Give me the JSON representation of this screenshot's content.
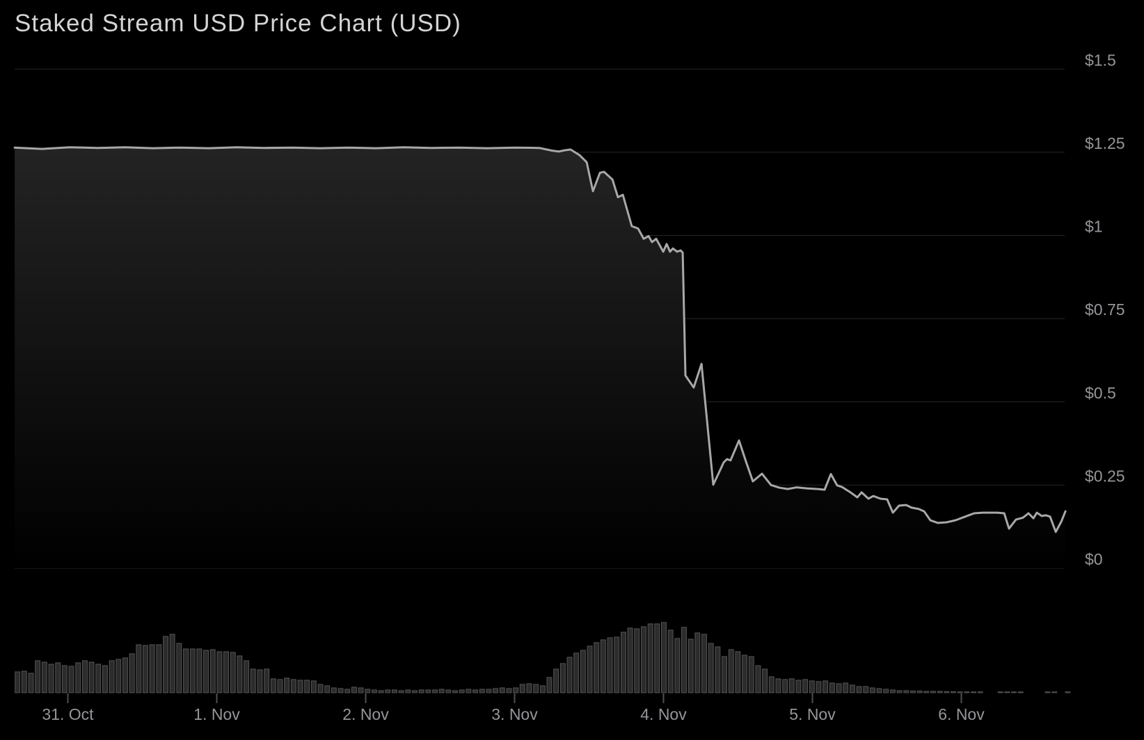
{
  "title": "Staked Stream USD Price Chart (USD)",
  "chart_data": {
    "type": "area",
    "title": "Staked Stream USD Price Chart (USD)",
    "x_axis": {
      "unit": "date (days since 31. Oct 00:00)",
      "tick_labels": [
        "31. Oct",
        "1. Nov",
        "2. Nov",
        "3. Nov",
        "4. Nov",
        "5. Nov",
        "6. Nov"
      ],
      "tick_days": [
        0,
        1,
        2,
        3,
        4,
        5,
        6
      ],
      "min_day": -0.357,
      "max_day": 6.699,
      "grid": false
    },
    "y_axis": {
      "side": "right",
      "unit": "USD",
      "tick_labels": [
        "$0",
        "$0.25",
        "$0.5",
        "$0.75",
        "$1",
        "$1.25",
        "$1.5"
      ],
      "tick_values": [
        0,
        0.25,
        0.5,
        0.75,
        1,
        1.25,
        1.5
      ],
      "min": 0,
      "max": 1.5,
      "grid": true
    },
    "series": [
      {
        "name": "Staked Stream USD price",
        "type": "line",
        "unit": "USD",
        "points": [
          [
            -0.357,
            1.264
          ],
          [
            -0.175,
            1.26
          ],
          [
            0.012,
            1.265
          ],
          [
            0.199,
            1.263
          ],
          [
            0.386,
            1.265
          ],
          [
            0.572,
            1.262
          ],
          [
            0.759,
            1.264
          ],
          [
            0.946,
            1.262
          ],
          [
            1.133,
            1.265
          ],
          [
            1.32,
            1.263
          ],
          [
            1.507,
            1.264
          ],
          [
            1.694,
            1.262
          ],
          [
            1.881,
            1.264
          ],
          [
            2.068,
            1.262
          ],
          [
            2.255,
            1.265
          ],
          [
            2.442,
            1.263
          ],
          [
            2.629,
            1.264
          ],
          [
            2.816,
            1.262
          ],
          [
            3.002,
            1.264
          ],
          [
            3.166,
            1.263
          ],
          [
            3.25,
            1.255
          ],
          [
            3.297,
            1.252
          ],
          [
            3.339,
            1.256
          ],
          [
            3.376,
            1.258
          ],
          [
            3.437,
            1.241
          ],
          [
            3.484,
            1.22
          ],
          [
            3.526,
            1.133
          ],
          [
            3.573,
            1.188
          ],
          [
            3.601,
            1.191
          ],
          [
            3.657,
            1.168
          ],
          [
            3.694,
            1.115
          ],
          [
            3.727,
            1.122
          ],
          [
            3.787,
            1.028
          ],
          [
            3.829,
            1.021
          ],
          [
            3.867,
            0.99
          ],
          [
            3.9,
            0.998
          ],
          [
            3.923,
            0.98
          ],
          [
            3.951,
            0.99
          ],
          [
            3.998,
            0.951
          ],
          [
            4.021,
            0.974
          ],
          [
            4.044,
            0.951
          ],
          [
            4.063,
            0.961
          ],
          [
            4.091,
            0.951
          ],
          [
            4.115,
            0.955
          ],
          [
            4.129,
            0.948
          ],
          [
            4.147,
            0.579
          ],
          [
            4.203,
            0.543
          ],
          [
            4.255,
            0.614
          ],
          [
            4.334,
            0.251
          ],
          [
            4.371,
            0.286
          ],
          [
            4.404,
            0.318
          ],
          [
            4.427,
            0.328
          ],
          [
            4.45,
            0.324
          ],
          [
            4.507,
            0.384
          ],
          [
            4.554,
            0.32
          ],
          [
            4.6,
            0.261
          ],
          [
            4.661,
            0.284
          ],
          [
            4.722,
            0.25
          ],
          [
            4.778,
            0.242
          ],
          [
            4.834,
            0.238
          ],
          [
            4.895,
            0.243
          ],
          [
            4.965,
            0.24
          ],
          [
            5.035,
            0.238
          ],
          [
            5.082,
            0.236
          ],
          [
            5.124,
            0.283
          ],
          [
            5.166,
            0.249
          ],
          [
            5.199,
            0.244
          ],
          [
            5.255,
            0.228
          ],
          [
            5.302,
            0.213
          ],
          [
            5.33,
            0.228
          ],
          [
            5.376,
            0.209
          ],
          [
            5.409,
            0.217
          ],
          [
            5.456,
            0.209
          ],
          [
            5.502,
            0.207
          ],
          [
            5.54,
            0.167
          ],
          [
            5.582,
            0.188
          ],
          [
            5.629,
            0.19
          ],
          [
            5.666,
            0.182
          ],
          [
            5.713,
            0.178
          ],
          [
            5.75,
            0.171
          ],
          [
            5.792,
            0.144
          ],
          [
            5.843,
            0.136
          ],
          [
            5.9,
            0.138
          ],
          [
            5.96,
            0.144
          ],
          [
            6.026,
            0.155
          ],
          [
            6.087,
            0.165
          ],
          [
            6.143,
            0.167
          ],
          [
            6.19,
            0.167
          ],
          [
            6.241,
            0.167
          ],
          [
            6.288,
            0.165
          ],
          [
            6.32,
            0.119
          ],
          [
            6.367,
            0.146
          ],
          [
            6.414,
            0.152
          ],
          [
            6.451,
            0.165
          ],
          [
            6.484,
            0.15
          ],
          [
            6.507,
            0.167
          ],
          [
            6.54,
            0.157
          ],
          [
            6.568,
            0.159
          ],
          [
            6.596,
            0.155
          ],
          [
            6.634,
            0.109
          ],
          [
            6.671,
            0.14
          ],
          [
            6.699,
            0.171
          ]
        ]
      },
      {
        "name": "volume",
        "type": "bar",
        "unit": "relative height (max = 101)",
        "start_day": -0.338,
        "step_days": 0.04521,
        "values": [
          30,
          31,
          28,
          46,
          44,
          41,
          43,
          39,
          38,
          43,
          46,
          44,
          41,
          39,
          46,
          48,
          50,
          56,
          69,
          68,
          69,
          69,
          81,
          84,
          71,
          63,
          63,
          63,
          61,
          62,
          59,
          59,
          58,
          53,
          46,
          34,
          33,
          34,
          20,
          19,
          21,
          19,
          18,
          18,
          17,
          12,
          10,
          7,
          6,
          5,
          8,
          7,
          5,
          4,
          3,
          4,
          4,
          3,
          4,
          3,
          4,
          4,
          4,
          5,
          4,
          3,
          4,
          5,
          4,
          5,
          5,
          6,
          7,
          6,
          7,
          12,
          13,
          12,
          10,
          22,
          34,
          42,
          51,
          57,
          61,
          67,
          72,
          76,
          79,
          80,
          87,
          93,
          92,
          95,
          99,
          99,
          101,
          90,
          78,
          94,
          77,
          86,
          84,
          71,
          66,
          52,
          62,
          59,
          54,
          52,
          39,
          34,
          23,
          20,
          19,
          20,
          18,
          19,
          17,
          16,
          17,
          14,
          13,
          14,
          11,
          9,
          9,
          7,
          6,
          5,
          4,
          3,
          3,
          2.5,
          2.5,
          2,
          2,
          2,
          1.7,
          1.5,
          1.2,
          1.2,
          1.2,
          1.2,
          0,
          0,
          1.2,
          1.2,
          1.2,
          1.2,
          0,
          0,
          0,
          1.2,
          1.2,
          0,
          1.2
        ]
      }
    ],
    "colors": {
      "background": "#000000",
      "line": "#a8a8a8",
      "grid": "#262626",
      "area_top": "#2a2a2a",
      "area_bottom": "#000000",
      "bar_fill": "#2c2c2c",
      "bar_stroke": "#545454",
      "axis_label": "#96969a",
      "tick": "#505050",
      "title": "#d4d4d6"
    }
  }
}
